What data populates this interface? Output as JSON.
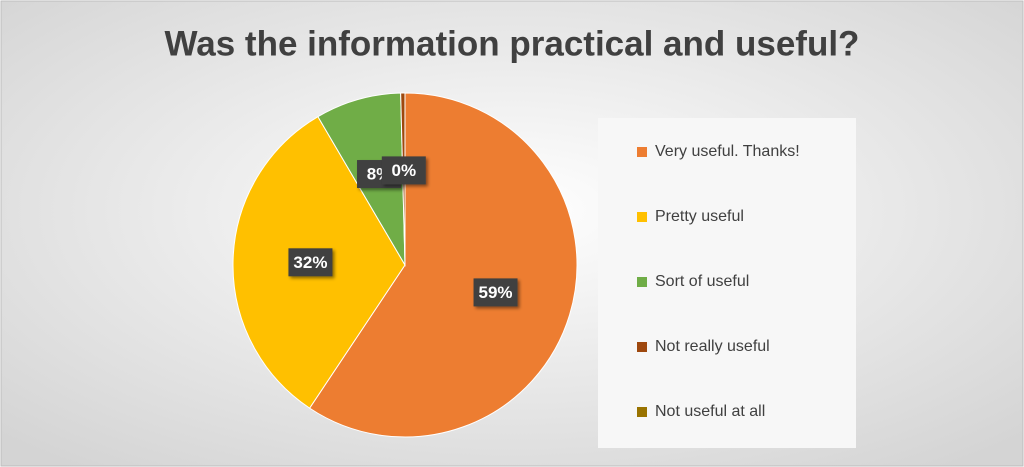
{
  "chart_data": {
    "type": "pie",
    "title": "Was the information practical and useful?",
    "categories": [
      "Very useful. Thanks!",
      "Pretty useful",
      "Sort of useful",
      "Not really useful",
      "Not useful at all"
    ],
    "values": [
      59,
      32,
      8,
      0.4,
      0
    ],
    "value_labels": [
      "59%",
      "32%",
      "8%",
      "0%",
      null
    ],
    "colors": [
      "#ED7D31",
      "#FFC000",
      "#70AD47",
      "#9E480E",
      "#997300"
    ],
    "legend": "right"
  }
}
